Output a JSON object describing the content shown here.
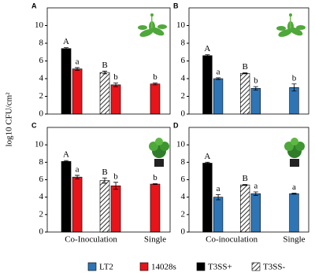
{
  "y_label": "log10 CFU/cm²",
  "legend": [
    {
      "name": "LT2",
      "color": "#2e75b6"
    },
    {
      "name": "14028s",
      "color": "#e8141a"
    },
    {
      "name": "T3SS+",
      "color": "#000000"
    },
    {
      "name": "T3SS-",
      "color": "#ffffff",
      "hatch": true
    }
  ],
  "chart_data": [
    {
      "type": "bar",
      "label": "A",
      "values": [
        7.4,
        5.1,
        4.7,
        3.3,
        3.4
      ],
      "errors": [
        0.1,
        0.15,
        0.15,
        0.2,
        0.1
      ],
      "annotations": [
        "A",
        "a",
        "B",
        "b",
        "b"
      ],
      "styles": [
        2,
        1,
        3,
        1,
        1
      ],
      "ylim": [
        0,
        12
      ],
      "yticks": [
        0,
        2,
        4,
        6,
        8,
        10
      ]
    },
    {
      "type": "bar",
      "label": "B",
      "values": [
        6.6,
        4.0,
        4.6,
        2.9,
        3.0
      ],
      "errors": [
        0.1,
        0.1,
        0.05,
        0.2,
        0.4
      ],
      "annotations": [
        "A",
        "a",
        "B",
        "b",
        "b"
      ],
      "styles": [
        2,
        0,
        3,
        0,
        0
      ],
      "ylim": [
        0,
        12
      ],
      "yticks": [
        0,
        2,
        4,
        6,
        8,
        10
      ]
    },
    {
      "type": "bar",
      "label": "C",
      "values": [
        8.1,
        6.3,
        5.9,
        5.3,
        5.5
      ],
      "errors": [
        0.1,
        0.2,
        0.3,
        0.4,
        0.05
      ],
      "annotations": [
        "A",
        "a",
        "B",
        "b",
        "b"
      ],
      "styles": [
        2,
        1,
        3,
        1,
        1
      ],
      "ylim": [
        0,
        12
      ],
      "yticks": [
        0,
        2,
        4,
        6,
        8,
        10
      ],
      "group_labels": [
        "Co-Inoculation",
        "Single"
      ]
    },
    {
      "type": "bar",
      "label": "D",
      "values": [
        7.9,
        4.0,
        5.4,
        4.4,
        4.4
      ],
      "errors": [
        0.1,
        0.3,
        0.05,
        0.2,
        0.05
      ],
      "annotations": [
        "A",
        "a",
        "B",
        "a",
        "a"
      ],
      "styles": [
        2,
        0,
        3,
        0,
        0
      ],
      "ylim": [
        0,
        12
      ],
      "yticks": [
        0,
        2,
        4,
        6,
        8,
        10
      ],
      "group_labels": [
        "Co-inoculation",
        "Single"
      ]
    }
  ]
}
